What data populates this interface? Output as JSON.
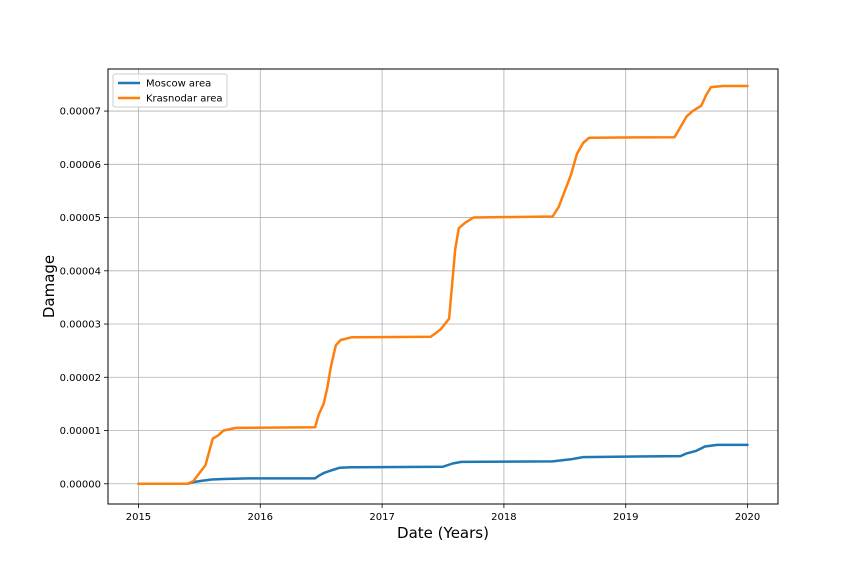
{
  "chart_data": {
    "type": "line",
    "xlabel": "Date (Years)",
    "ylabel": "Damage",
    "xlim": [
      2014.75,
      2020.25
    ],
    "ylim": [
      -3.8e-06,
      7.79e-05
    ],
    "x_ticks": [
      2015,
      2016,
      2017,
      2018,
      2019,
      2020
    ],
    "x_tick_labels": [
      "2015",
      "2016",
      "2017",
      "2018",
      "2019",
      "2020"
    ],
    "y_ticks": [
      0,
      1e-05,
      2e-05,
      3e-05,
      4e-05,
      5e-05,
      6e-05,
      7e-05
    ],
    "y_tick_labels": [
      "0.00000",
      "0.00001",
      "0.00002",
      "0.00003",
      "0.00004",
      "0.00005",
      "0.00006",
      "0.00007"
    ],
    "grid": true,
    "legend_position": "top-left",
    "series": [
      {
        "name": "Moscow area",
        "color": "#1f77b4",
        "points": [
          [
            2015.0,
            0.0
          ],
          [
            2015.4,
            0.0
          ],
          [
            2015.45,
            3e-07
          ],
          [
            2015.5,
            5e-07
          ],
          [
            2015.6,
            8e-07
          ],
          [
            2015.7,
            9e-07
          ],
          [
            2015.9,
            1e-06
          ],
          [
            2016.45,
            1e-06
          ],
          [
            2016.48,
            1.5e-06
          ],
          [
            2016.52,
            2e-06
          ],
          [
            2016.58,
            2.5e-06
          ],
          [
            2016.65,
            3e-06
          ],
          [
            2016.75,
            3.1e-06
          ],
          [
            2017.5,
            3.2e-06
          ],
          [
            2017.58,
            3.8e-06
          ],
          [
            2017.65,
            4.1e-06
          ],
          [
            2018.4,
            4.2e-06
          ],
          [
            2018.55,
            4.6e-06
          ],
          [
            2018.65,
            5e-06
          ],
          [
            2019.0,
            5.1e-06
          ],
          [
            2019.45,
            5.2e-06
          ],
          [
            2019.5,
            5.7e-06
          ],
          [
            2019.58,
            6.2e-06
          ],
          [
            2019.65,
            7e-06
          ],
          [
            2019.75,
            7.3e-06
          ],
          [
            2020.0,
            7.3e-06
          ]
        ]
      },
      {
        "name": "Krasnodar area",
        "color": "#ff7f0e",
        "points": [
          [
            2015.0,
            0.0
          ],
          [
            2015.4,
            0.0
          ],
          [
            2015.45,
            5e-07
          ],
          [
            2015.5,
            2e-06
          ],
          [
            2015.55,
            3.5e-06
          ],
          [
            2015.58,
            6e-06
          ],
          [
            2015.61,
            8.5e-06
          ],
          [
            2015.65,
            9e-06
          ],
          [
            2015.7,
            1e-05
          ],
          [
            2015.8,
            1.05e-05
          ],
          [
            2016.45,
            1.06e-05
          ],
          [
            2016.48,
            1.3e-05
          ],
          [
            2016.52,
            1.5e-05
          ],
          [
            2016.55,
            1.8e-05
          ],
          [
            2016.58,
            2.2e-05
          ],
          [
            2016.62,
            2.6e-05
          ],
          [
            2016.66,
            2.7e-05
          ],
          [
            2016.75,
            2.75e-05
          ],
          [
            2017.4,
            2.76e-05
          ],
          [
            2017.48,
            2.9e-05
          ],
          [
            2017.55,
            3.1e-05
          ],
          [
            2017.6,
            4.4e-05
          ],
          [
            2017.63,
            4.8e-05
          ],
          [
            2017.68,
            4.9e-05
          ],
          [
            2017.75,
            5e-05
          ],
          [
            2018.4,
            5.02e-05
          ],
          [
            2018.45,
            5.2e-05
          ],
          [
            2018.5,
            5.5e-05
          ],
          [
            2018.55,
            5.8e-05
          ],
          [
            2018.6,
            6.2e-05
          ],
          [
            2018.65,
            6.4e-05
          ],
          [
            2018.7,
            6.5e-05
          ],
          [
            2019.4,
            6.51e-05
          ],
          [
            2019.45,
            6.7e-05
          ],
          [
            2019.5,
            6.9e-05
          ],
          [
            2019.55,
            7e-05
          ],
          [
            2019.62,
            7.1e-05
          ],
          [
            2019.66,
            7.3e-05
          ],
          [
            2019.7,
            7.45e-05
          ],
          [
            2019.8,
            7.47e-05
          ],
          [
            2020.0,
            7.47e-05
          ]
        ]
      }
    ]
  }
}
